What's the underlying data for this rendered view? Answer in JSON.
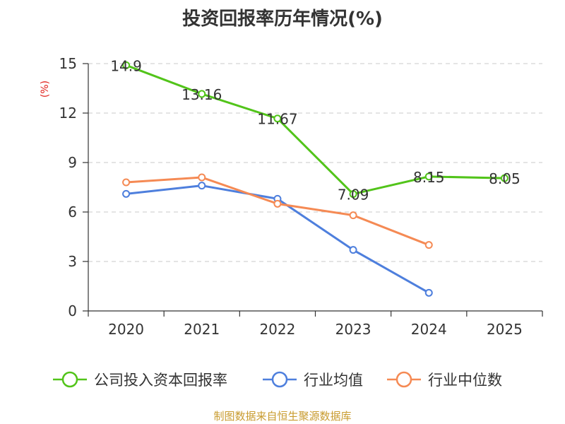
{
  "chart_data": {
    "type": "line",
    "title": "投资回报率历年情况(%)",
    "ylabel": "(%)",
    "xlabel": "",
    "categories": [
      "2020",
      "2021",
      "2022",
      "2023",
      "2024",
      "2025"
    ],
    "ylim": [
      0,
      15
    ],
    "yticks": [
      0,
      3,
      6,
      9,
      12,
      15
    ],
    "grid": true,
    "legend_position": "bottom",
    "series": [
      {
        "name": "公司投入资本回报率",
        "color": "#52c41a",
        "values": [
          14.9,
          13.16,
          11.67,
          7.09,
          8.15,
          8.05
        ],
        "show_labels": true
      },
      {
        "name": "行业均值",
        "color": "#4e7fdd",
        "values": [
          7.1,
          7.6,
          6.8,
          3.7,
          1.1,
          null
        ],
        "show_labels": false
      },
      {
        "name": "行业中位数",
        "color": "#f58a54",
        "values": [
          7.8,
          8.1,
          6.5,
          5.8,
          4.0,
          null
        ],
        "show_labels": false
      }
    ]
  },
  "footer": {
    "source": "制图数据来自恒生聚源数据库"
  }
}
